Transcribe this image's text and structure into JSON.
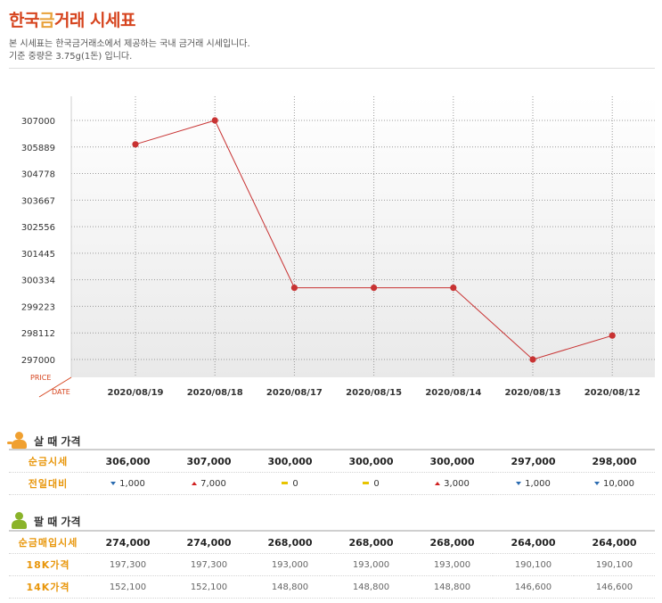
{
  "header": {
    "title_part1": "한국",
    "title_accent": "금",
    "title_part2": "거래 시세표",
    "desc1": "본 시세표는 한국금거래소에서 제공하는 국내 금거래 시세입니다.",
    "desc2": "기준 중량은 3.75g(1돈) 입니다."
  },
  "chart_data": {
    "type": "line",
    "categories": [
      "2020/08/19",
      "2020/08/18",
      "2020/08/17",
      "2020/08/15",
      "2020/08/14",
      "2020/08/13",
      "2020/08/12"
    ],
    "values": [
      306000,
      307000,
      300000,
      300000,
      300000,
      297000,
      298000
    ],
    "yticks": [
      307000,
      305889,
      304778,
      303667,
      302556,
      301445,
      300334,
      299223,
      298112,
      297000
    ],
    "ylim": [
      296000,
      308000
    ],
    "ylabel": "PRICE",
    "xlabel": "DATE",
    "line_color": "#c83232",
    "grid": true
  },
  "buy": {
    "heading": "살 때 가격",
    "rows": [
      {
        "label": "순금시세",
        "values": [
          "306,000",
          "307,000",
          "300,000",
          "300,000",
          "300,000",
          "297,000",
          "298,000"
        ]
      },
      {
        "label": "전일대비",
        "changes": [
          {
            "dir": "down",
            "text": "1,000"
          },
          {
            "dir": "up",
            "text": "7,000"
          },
          {
            "dir": "flat",
            "text": "0"
          },
          {
            "dir": "flat",
            "text": "0"
          },
          {
            "dir": "up",
            "text": "3,000"
          },
          {
            "dir": "down",
            "text": "1,000"
          },
          {
            "dir": "down",
            "text": "10,000"
          }
        ]
      }
    ]
  },
  "sell": {
    "heading": "팔 때 가격",
    "rows": [
      {
        "label": "순금매입시세",
        "values": [
          "274,000",
          "274,000",
          "268,000",
          "268,000",
          "268,000",
          "264,000",
          "264,000"
        ]
      },
      {
        "label": "18K가격",
        "values": [
          "197,300",
          "197,300",
          "193,000",
          "193,000",
          "193,000",
          "190,100",
          "190,100"
        ]
      },
      {
        "label": "14K가격",
        "values": [
          "152,100",
          "152,100",
          "148,800",
          "148,800",
          "148,800",
          "146,600",
          "146,600"
        ]
      }
    ]
  }
}
